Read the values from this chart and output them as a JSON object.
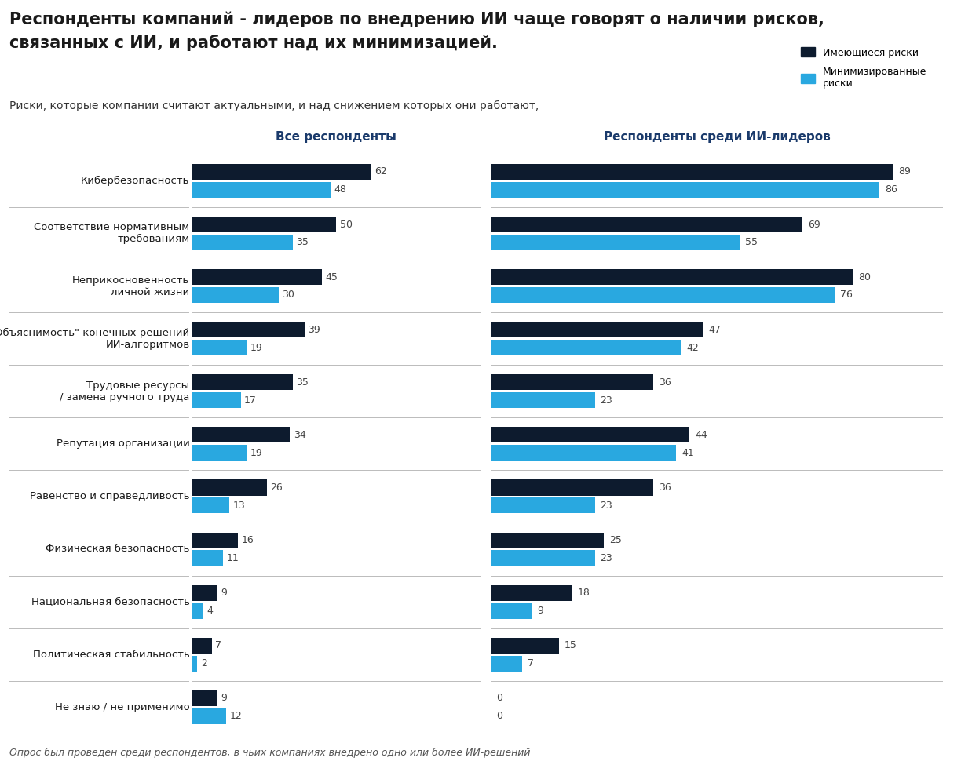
{
  "title": "Респонденты компаний - лидеров по внедрению ИИ чаще говорят о наличии рисков,\nсвязанных с ИИ, и работают над их минимизацией.",
  "subtitle": "Риски, которые компании считают актуальными, и над снижением которых они работают,",
  "footnote": "Опрос был проведен среди респондентов, в чьих компаниях внедрено одно или более ИИ-решений",
  "col1_title": "Все респонденты",
  "col2_title": "Респонденты среди ИИ-лидеров",
  "legend_dark": "Имеющиеся риски",
  "legend_blue": "Минимизированные\nриски",
  "categories": [
    "Кибербезопасность",
    "Соответствие нормативным\nтребованиям",
    "Неприкосновенность\nличной жизни",
    "\"Объяснимость\" конечных решений\nИИ-алгоритмов",
    "Трудовые ресурсы\n/ замена ручного труда",
    "Репутация организации",
    "Равенство и справедливость",
    "Физическая безопасность",
    "Национальная безопасность",
    "Политическая стабильность",
    "Не знаю / не применимо"
  ],
  "all_dark": [
    62,
    50,
    45,
    39,
    35,
    34,
    26,
    16,
    9,
    7,
    9
  ],
  "all_blue": [
    48,
    35,
    30,
    19,
    17,
    19,
    13,
    11,
    4,
    2,
    12
  ],
  "leaders_dark": [
    89,
    69,
    80,
    47,
    36,
    44,
    36,
    25,
    18,
    15,
    0
  ],
  "leaders_blue": [
    86,
    55,
    76,
    42,
    23,
    41,
    23,
    23,
    9,
    7,
    0
  ],
  "color_dark": "#0d1b2e",
  "color_blue": "#29a8e0",
  "color_separator": "#bbbbbb",
  "background": "#ffffff",
  "title_color": "#1a1a1a",
  "subtitle_color": "#333333",
  "footnote_color": "#555555",
  "label_color": "#1a1a1a",
  "value_color": "#444444",
  "col_title_color": "#1a3a6b"
}
